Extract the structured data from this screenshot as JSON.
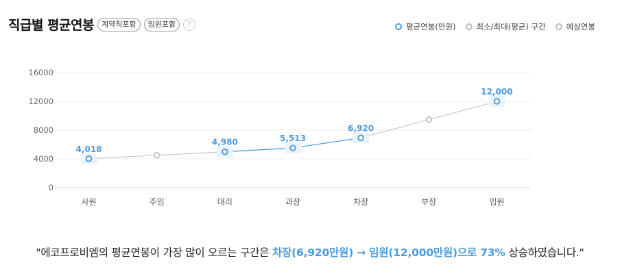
{
  "header": {
    "title": "직급별 평균연봉",
    "pill_contract": "계약직포함",
    "pill_exec": "임원포함",
    "help": "?"
  },
  "legend": [
    {
      "label": "평균연봉(만원)",
      "color": "#4a9be0"
    },
    {
      "label": "최소/최대(평균) 구간",
      "color": "#c4c4c4"
    },
    {
      "label": "예상연봉",
      "color": "#c4c4c4"
    }
  ],
  "chart_data": {
    "type": "line",
    "categories": [
      "사원",
      "주임",
      "대리",
      "과장",
      "차장",
      "부장",
      "임원"
    ],
    "yticks": [
      0,
      4000,
      8000,
      12000,
      16000
    ],
    "ylim": [
      0,
      16000
    ],
    "grid": true,
    "legend_position": "top-right",
    "series": [
      {
        "name": "평균연봉(만원)",
        "values": [
          4018,
          null,
          4980,
          5513,
          6920,
          null,
          12000
        ],
        "labels": [
          "4,018",
          "",
          "4,980",
          "5,513",
          "6,920",
          "",
          "12,000"
        ],
        "color": "#4a9be0"
      },
      {
        "name": "예상연봉",
        "values": [
          null,
          4500,
          null,
          null,
          null,
          9450,
          null
        ],
        "color": "#c4c4c4"
      }
    ]
  },
  "summary": {
    "prefix": "\"에코프로비엠의 평균연봉이 가장 많이 오르는 구간은 ",
    "from": "차장(6,920만원)",
    "arrow": " → ",
    "to": "임원(12,000만원)",
    "mid": "으로 ",
    "pct": "73%",
    "suffix": " 상승하였습니다.\""
  }
}
